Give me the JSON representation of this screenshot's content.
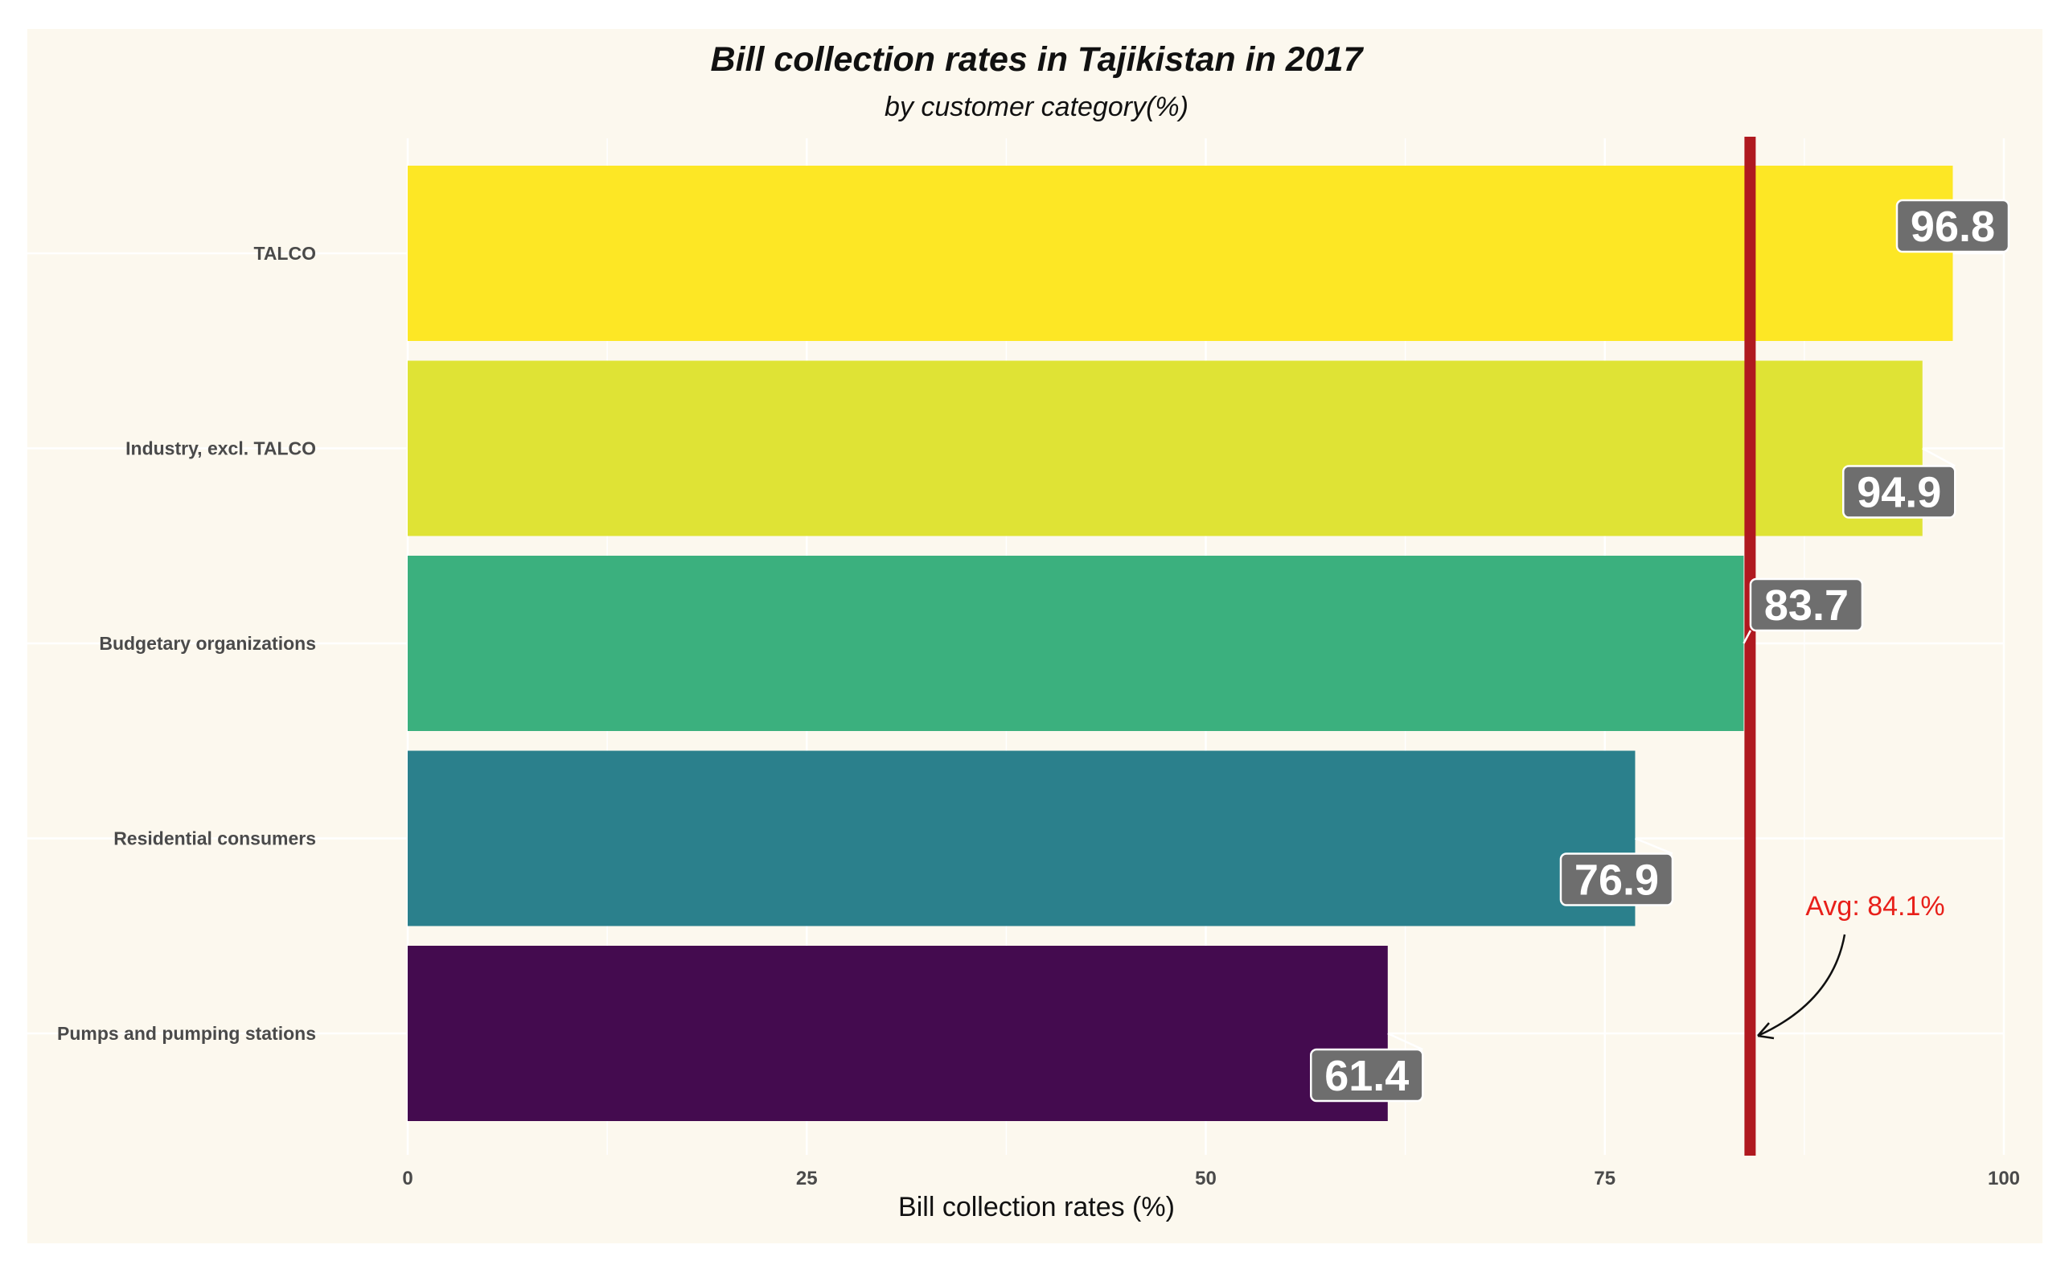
{
  "chart_data": {
    "type": "bar",
    "orientation": "horizontal",
    "title": "Bill collection rates in Tajikistan in 2017",
    "subtitle": "by customer category(%)",
    "xlabel": "Bill collection rates (%)",
    "ylabel": "",
    "xlim": [
      0,
      100
    ],
    "xticks": [
      0,
      25,
      50,
      75,
      100
    ],
    "xtick_labels": [
      "0",
      "25",
      "50",
      "75",
      "100"
    ],
    "categories": [
      "TALCO",
      "Industry, excl. TALCO",
      "Budgetary organizations",
      "Residential consumers",
      "Pumps and pumping stations"
    ],
    "values": [
      96.8,
      94.9,
      83.7,
      76.9,
      61.4
    ],
    "value_labels": [
      "96.8",
      "94.9",
      "83.7",
      "76.9",
      "61.4"
    ],
    "bar_colors": [
      "#fde725",
      "#dfe335",
      "#3bb07e",
      "#2b808c",
      "#440b4f"
    ],
    "grid": true,
    "legend": "none",
    "reference_line": {
      "value": 84.1,
      "color": "#b0191f",
      "annotation": "Avg: 84.1%",
      "annotation_color": "#e8201a"
    },
    "colors": {
      "background": "#fcf8ee",
      "label_box": "#6e6e6e",
      "label_text": "#ffffff",
      "grid": "#ffffff"
    }
  }
}
